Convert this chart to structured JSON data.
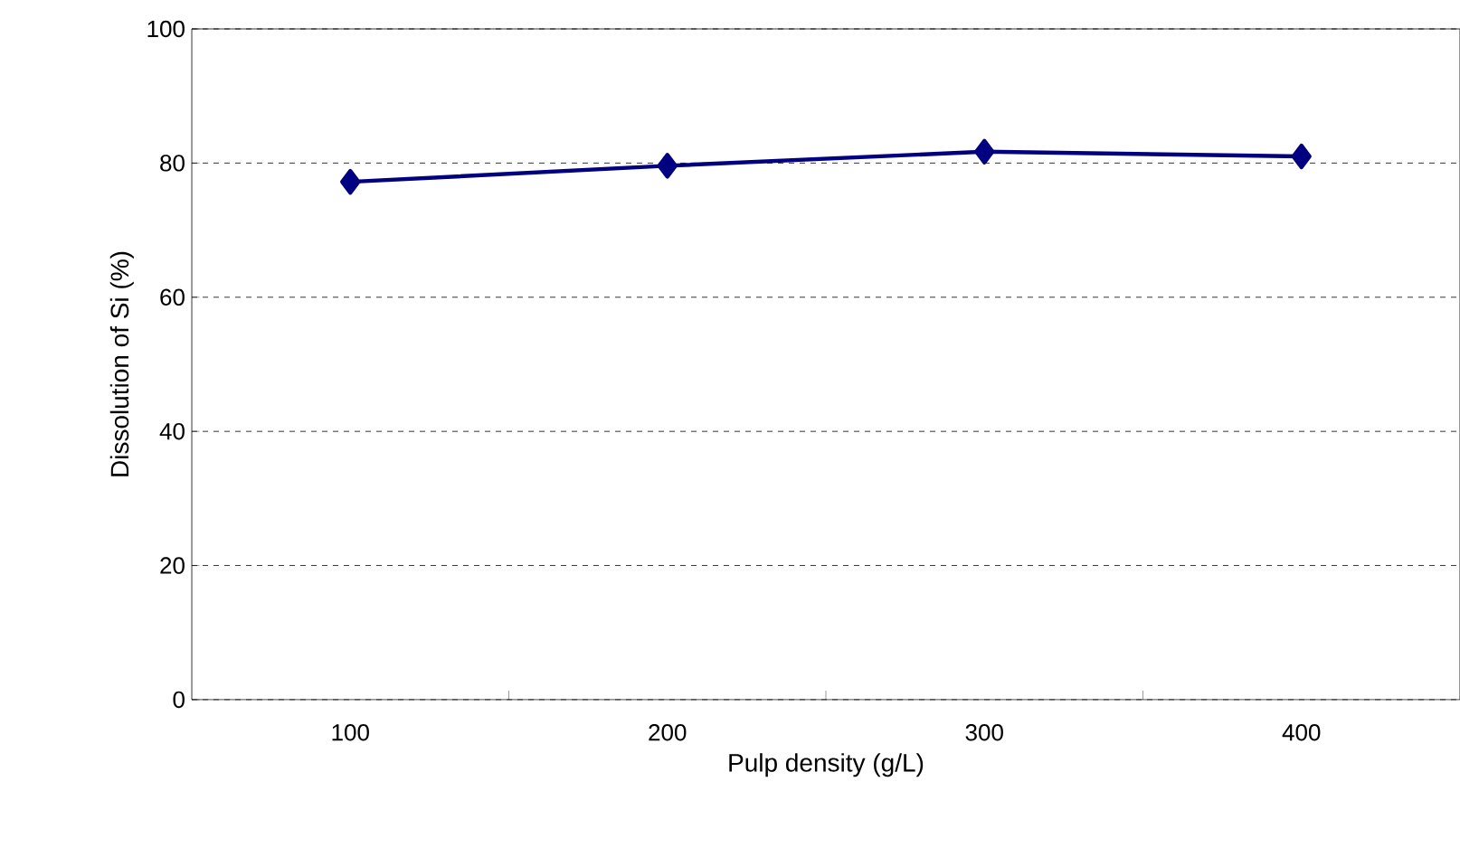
{
  "chart_data": {
    "type": "line",
    "xlabel": "Pulp density (g/L)",
    "ylabel": "Dissolution of Si (%)",
    "categories": [
      "100",
      "200",
      "300",
      "400"
    ],
    "series": [
      {
        "color": "#000080",
        "values": [
          77.2,
          79.6,
          81.7,
          81.0
        ]
      }
    ],
    "ylim": [
      0,
      100
    ],
    "yticks": [
      0,
      20,
      40,
      60,
      80,
      100
    ],
    "grid": "y",
    "marker": "diamond",
    "line_style": "solid"
  }
}
